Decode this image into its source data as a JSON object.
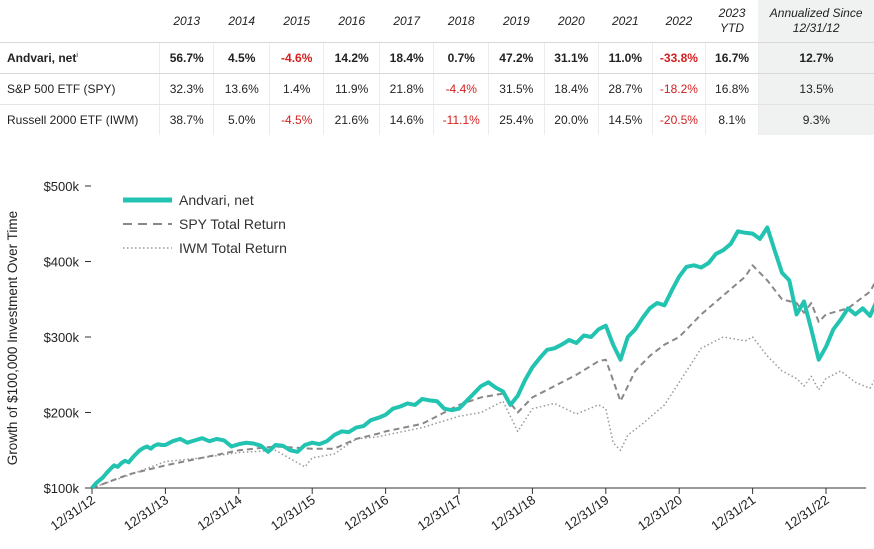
{
  "table": {
    "headers": [
      "2013",
      "2014",
      "2015",
      "2016",
      "2017",
      "2018",
      "2019",
      "2020",
      "2021",
      "2022",
      "2023 YTD"
    ],
    "annualized_header": "Annualized Since 12/31/12",
    "rows": [
      {
        "label": "Andvari, net",
        "superscript": "i",
        "values": [
          "56.7%",
          "4.5%",
          "-4.6%",
          "14.2%",
          "18.4%",
          "0.7%",
          "47.2%",
          "31.1%",
          "11.0%",
          "-33.8%",
          "16.7%"
        ],
        "annualized": "12.7%"
      },
      {
        "label": "S&P 500 ETF (SPY)",
        "superscript": "",
        "values": [
          "32.3%",
          "13.6%",
          "1.4%",
          "11.9%",
          "21.8%",
          "-4.4%",
          "31.5%",
          "18.4%",
          "28.7%",
          "-18.2%",
          "16.8%"
        ],
        "annualized": "13.5%"
      },
      {
        "label": "Russell 2000 ETF (IWM)",
        "superscript": "",
        "values": [
          "38.7%",
          "5.0%",
          "-4.5%",
          "21.6%",
          "14.6%",
          "-11.1%",
          "25.4%",
          "20.0%",
          "14.5%",
          "-20.5%",
          "8.1%"
        ],
        "annualized": "9.3%"
      }
    ]
  },
  "chart_data": {
    "type": "line",
    "title": "",
    "xlabel": "",
    "ylabel": "Growth of $100,000 Investment Over Time",
    "x_ticks": [
      "12/31/12",
      "12/31/13",
      "12/31/14",
      "12/31/15",
      "12/31/16",
      "12/31/17",
      "12/31/18",
      "12/31/19",
      "12/31/20",
      "12/31/21",
      "12/31/22"
    ],
    "y_ticks": [
      "$100k",
      "$200k",
      "$300k",
      "$400k",
      "$500k"
    ],
    "ylim": [
      100000,
      500000
    ],
    "xlim": [
      0,
      10.75
    ],
    "legend_position": "top-left",
    "grid": false,
    "series": [
      {
        "name": "Andvari, net",
        "style": "solid",
        "color": "#22c3b0",
        "x": [
          0,
          0.05,
          0.1,
          0.15,
          0.2,
          0.25,
          0.3,
          0.35,
          0.4,
          0.45,
          0.5,
          0.55,
          0.6,
          0.65,
          0.7,
          0.75,
          0.8,
          0.85,
          0.9,
          0.95,
          1.0,
          1.1,
          1.2,
          1.3,
          1.4,
          1.5,
          1.6,
          1.7,
          1.8,
          1.9,
          2.0,
          2.1,
          2.2,
          2.3,
          2.4,
          2.5,
          2.6,
          2.7,
          2.8,
          2.9,
          3.0,
          3.1,
          3.2,
          3.3,
          3.4,
          3.5,
          3.6,
          3.7,
          3.8,
          3.9,
          4.0,
          4.1,
          4.2,
          4.3,
          4.4,
          4.5,
          4.6,
          4.7,
          4.8,
          4.9,
          5.0,
          5.1,
          5.2,
          5.3,
          5.4,
          5.5,
          5.6,
          5.7,
          5.8,
          5.9,
          6.0,
          6.1,
          6.2,
          6.3,
          6.4,
          6.5,
          6.6,
          6.7,
          6.8,
          6.9,
          7.0,
          7.1,
          7.2,
          7.3,
          7.4,
          7.5,
          7.6,
          7.7,
          7.8,
          7.9,
          8.0,
          8.1,
          8.2,
          8.3,
          8.4,
          8.5,
          8.6,
          8.7,
          8.8,
          8.9,
          9.0,
          9.1,
          9.2,
          9.3,
          9.4,
          9.5,
          9.6,
          9.7,
          9.8,
          9.9,
          10.0,
          10.1,
          10.2,
          10.3,
          10.4,
          10.5,
          10.6,
          10.7
        ],
        "y": [
          100000,
          106000,
          110000,
          114000,
          120000,
          125000,
          130000,
          128000,
          133000,
          136000,
          134000,
          140000,
          145000,
          150000,
          153000,
          155000,
          152000,
          156000,
          158000,
          157000,
          157000,
          162000,
          165000,
          160000,
          163000,
          166000,
          162000,
          165000,
          163000,
          155000,
          158000,
          160000,
          159000,
          156000,
          148000,
          157000,
          156000,
          150000,
          148000,
          157000,
          160000,
          158000,
          162000,
          170000,
          175000,
          174000,
          180000,
          182000,
          190000,
          193000,
          197000,
          205000,
          208000,
          212000,
          210000,
          218000,
          216000,
          215000,
          205000,
          203000,
          205000,
          215000,
          225000,
          235000,
          240000,
          233000,
          228000,
          210000,
          222000,
          243000,
          260000,
          272000,
          283000,
          285000,
          290000,
          296000,
          292000,
          302000,
          300000,
          310000,
          315000,
          290000,
          270000,
          300000,
          310000,
          325000,
          338000,
          345000,
          342000,
          362000,
          380000,
          393000,
          395000,
          392000,
          398000,
          410000,
          415000,
          423000,
          440000,
          438000,
          437000,
          430000,
          445000,
          415000,
          385000,
          375000,
          330000,
          347000,
          310000,
          270000,
          287000,
          310000,
          323000,
          338000,
          330000,
          338000,
          328000,
          350000
        ]
      },
      {
        "name": "SPY Total Return",
        "style": "dashed",
        "color": "#888888",
        "x": [
          0,
          0.5,
          1.0,
          1.5,
          2.0,
          2.5,
          3.0,
          3.3,
          3.6,
          3.9,
          4.0,
          4.5,
          5.0,
          5.3,
          5.6,
          5.8,
          6.0,
          6.3,
          6.6,
          6.9,
          7.0,
          7.2,
          7.4,
          7.6,
          7.8,
          8.0,
          8.3,
          8.6,
          8.9,
          9.0,
          9.2,
          9.4,
          9.6,
          9.7,
          9.8,
          9.9,
          10.0,
          10.3,
          10.6,
          10.7
        ],
        "y": [
          100000,
          118000,
          130000,
          140000,
          150000,
          155000,
          152000,
          152000,
          165000,
          172000,
          175000,
          185000,
          210000,
          220000,
          225000,
          200000,
          220000,
          235000,
          250000,
          268000,
          270000,
          215000,
          255000,
          275000,
          290000,
          300000,
          330000,
          355000,
          380000,
          395000,
          375000,
          350000,
          345000,
          332000,
          345000,
          320000,
          330000,
          338000,
          360000,
          378000
        ]
      },
      {
        "name": "IWM Total Return",
        "style": "dotted",
        "color": "#999999",
        "x": [
          0,
          0.5,
          1.0,
          1.5,
          2.0,
          2.5,
          2.9,
          3.0,
          3.3,
          3.6,
          3.9,
          4.0,
          4.5,
          5.0,
          5.3,
          5.6,
          5.8,
          6.0,
          6.3,
          6.6,
          6.9,
          7.0,
          7.1,
          7.2,
          7.3,
          7.5,
          7.8,
          8.0,
          8.3,
          8.6,
          8.9,
          9.0,
          9.2,
          9.4,
          9.6,
          9.7,
          9.8,
          9.9,
          10.0,
          10.2,
          10.4,
          10.6,
          10.7
        ],
        "y": [
          100000,
          117000,
          135000,
          140000,
          147000,
          150000,
          128000,
          140000,
          145000,
          165000,
          168000,
          170000,
          180000,
          195000,
          200000,
          215000,
          175000,
          205000,
          212000,
          198000,
          210000,
          205000,
          160000,
          150000,
          170000,
          185000,
          210000,
          240000,
          285000,
          300000,
          295000,
          300000,
          275000,
          255000,
          245000,
          235000,
          248000,
          230000,
          245000,
          255000,
          240000,
          232000,
          250000
        ]
      }
    ]
  }
}
